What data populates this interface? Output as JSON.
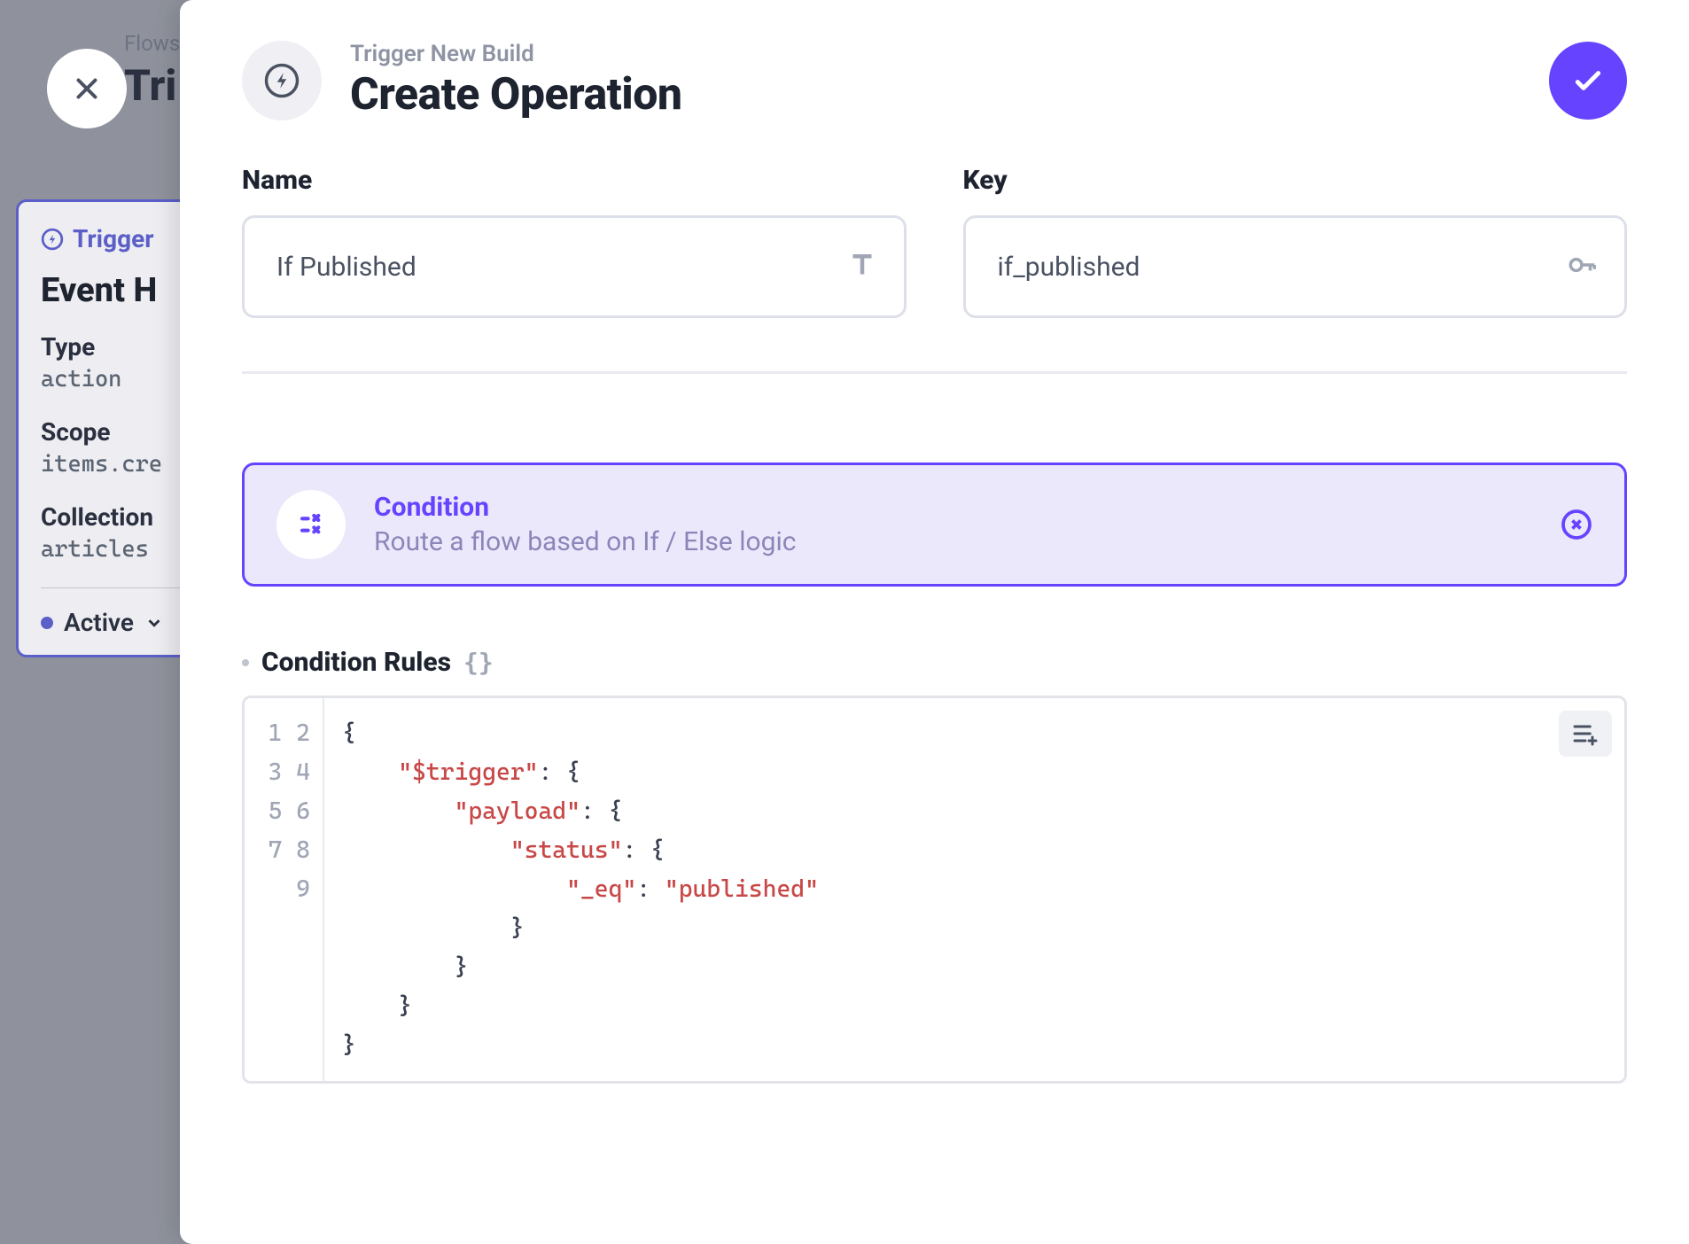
{
  "background": {
    "breadcrumb": "Flows",
    "title": "Tri",
    "card": {
      "header": "Trigger",
      "title": "Event H",
      "type_label": "Type",
      "type_value": "action",
      "scope_label": "Scope",
      "scope_value": "items.cre",
      "collections_label": "Collection",
      "collections_value": "articles",
      "status_label": "Active"
    }
  },
  "drawer": {
    "breadcrumb": "Trigger New Build",
    "title": "Create Operation",
    "name_label": "Name",
    "name_value": "If Published",
    "key_label": "Key",
    "key_value": "if_published",
    "operation": {
      "title": "Condition",
      "description": "Route a flow based on If / Else logic"
    },
    "rules": {
      "title": "Condition Rules",
      "braces": "{}",
      "code": {
        "lines": 9,
        "tokens": [
          {
            "ln": 1,
            "indent": 0,
            "parts": [
              {
                "t": "brace",
                "v": "{"
              }
            ]
          },
          {
            "ln": 2,
            "indent": 1,
            "parts": [
              {
                "t": "key",
                "v": "\"$trigger\""
              },
              {
                "t": "punc",
                "v": ": "
              },
              {
                "t": "brace",
                "v": "{"
              }
            ]
          },
          {
            "ln": 3,
            "indent": 2,
            "parts": [
              {
                "t": "key",
                "v": "\"payload\""
              },
              {
                "t": "punc",
                "v": ": "
              },
              {
                "t": "brace",
                "v": "{"
              }
            ]
          },
          {
            "ln": 4,
            "indent": 3,
            "parts": [
              {
                "t": "key",
                "v": "\"status\""
              },
              {
                "t": "punc",
                "v": ": "
              },
              {
                "t": "brace",
                "v": "{"
              }
            ]
          },
          {
            "ln": 5,
            "indent": 4,
            "parts": [
              {
                "t": "key",
                "v": "\"_eq\""
              },
              {
                "t": "punc",
                "v": ": "
              },
              {
                "t": "str",
                "v": "\"published\""
              }
            ]
          },
          {
            "ln": 6,
            "indent": 3,
            "parts": [
              {
                "t": "brace",
                "v": "}"
              }
            ]
          },
          {
            "ln": 7,
            "indent": 2,
            "parts": [
              {
                "t": "brace",
                "v": "}"
              }
            ]
          },
          {
            "ln": 8,
            "indent": 1,
            "parts": [
              {
                "t": "brace",
                "v": "}"
              }
            ]
          },
          {
            "ln": 9,
            "indent": 0,
            "parts": [
              {
                "t": "brace",
                "v": "}"
              }
            ]
          }
        ]
      }
    }
  },
  "colors": {
    "primary": "#6644ff",
    "primary_bg": "#ece8fc",
    "border": "#dde0e8",
    "text_dark": "#1e2330",
    "text_muted": "#8e94a4",
    "code_key": "#c84848"
  }
}
